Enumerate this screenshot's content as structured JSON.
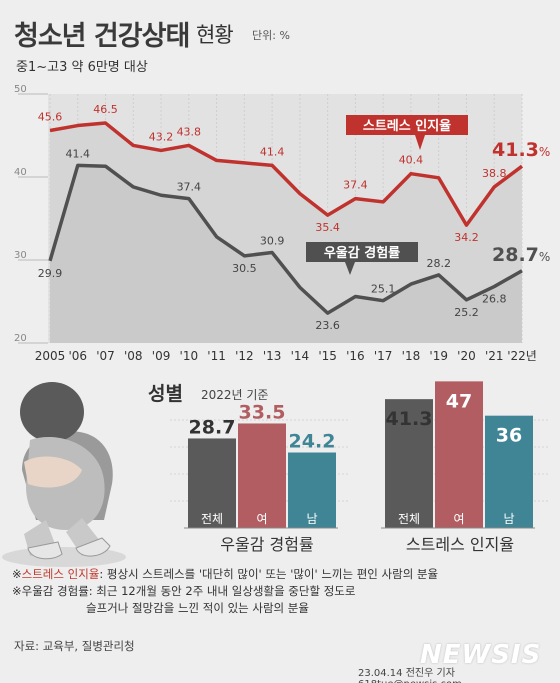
{
  "header": {
    "title": "청소년 건강상태",
    "title_sub": "현황",
    "unit": "단위: %",
    "subtitle": "중1~고3 약 6만명 대상"
  },
  "chart_data": [
    {
      "type": "line",
      "categories": [
        "2005",
        "'06",
        "'07",
        "'08",
        "'09",
        "'10",
        "'11",
        "'12",
        "'13",
        "'14",
        "'15",
        "'16",
        "'17",
        "'18",
        "'19",
        "'20",
        "'21",
        "'22년"
      ],
      "ylim": [
        20,
        50
      ],
      "yticks": [
        20,
        30,
        40,
        50
      ],
      "series": [
        {
          "name": "스트레스 인지율",
          "color": "#c0322e",
          "values": [
            45.6,
            46.2,
            46.5,
            43.8,
            43.2,
            43.8,
            42.0,
            41.7,
            41.4,
            38.0,
            35.4,
            37.4,
            37.0,
            40.4,
            39.9,
            34.2,
            38.8,
            41.3
          ],
          "labels": [
            "45.6",
            "",
            "46.5",
            "",
            "43.2",
            "43.8",
            "",
            "",
            "41.4",
            "",
            "35.4",
            "37.4",
            "",
            "40.4",
            "",
            "34.2",
            "38.8",
            "41.3"
          ]
        },
        {
          "name": "우울감 경험률",
          "color": "#505050",
          "values": [
            29.9,
            41.4,
            41.3,
            38.8,
            37.8,
            37.4,
            32.8,
            30.5,
            30.9,
            26.7,
            23.6,
            25.6,
            25.1,
            27.1,
            28.2,
            25.2,
            26.8,
            28.7
          ],
          "labels": [
            "29.9",
            "41.4",
            "",
            "",
            "",
            "37.4",
            "",
            "30.5",
            "30.9",
            "",
            "23.6",
            "",
            "25.1",
            "",
            "28.2",
            "25.2",
            "26.8",
            "28.7"
          ]
        }
      ],
      "last_value_suffix": "%"
    },
    {
      "type": "bar",
      "title": "성별",
      "subtitle": "2022년 기준",
      "groups": [
        {
          "name": "우울감 경험률",
          "categories": [
            "전체",
            "여",
            "남"
          ],
          "values": [
            28.7,
            33.5,
            24.2
          ],
          "colors": [
            "#5a5a5a",
            "#b25d61",
            "#3f8596"
          ],
          "label_colors": [
            "#333333",
            "#b25d61",
            "#3f8596"
          ]
        },
        {
          "name": "스트레스 인지율",
          "categories": [
            "전체",
            "여",
            "남"
          ],
          "values": [
            41.3,
            47,
            36
          ],
          "colors": [
            "#5a5a5a",
            "#b25d61",
            "#3f8596"
          ],
          "label_colors": [
            "#333333",
            "#ffffff",
            "#ffffff"
          ]
        }
      ]
    }
  ],
  "notes": {
    "note1_prefix": "※",
    "note1_term": "스트레스 인지율",
    "note1_text": ": 평상시 스트레스를 '대단히 많이' 또는 '많이' 느끼는 편인 사람의 분율",
    "note2_line1": "※우울감 경험률: 최근 12개월 동안 2주 내내 일상생활을 중단할 정도로",
    "note2_line2": "슬프거나 절망감을 느낀 적이 있는 사람의 분율"
  },
  "source": "자료: 교육부, 질병관리청",
  "credit": "23.04.14 전진우 기자 618tue@newsis.com",
  "brand": "NEWSIS"
}
